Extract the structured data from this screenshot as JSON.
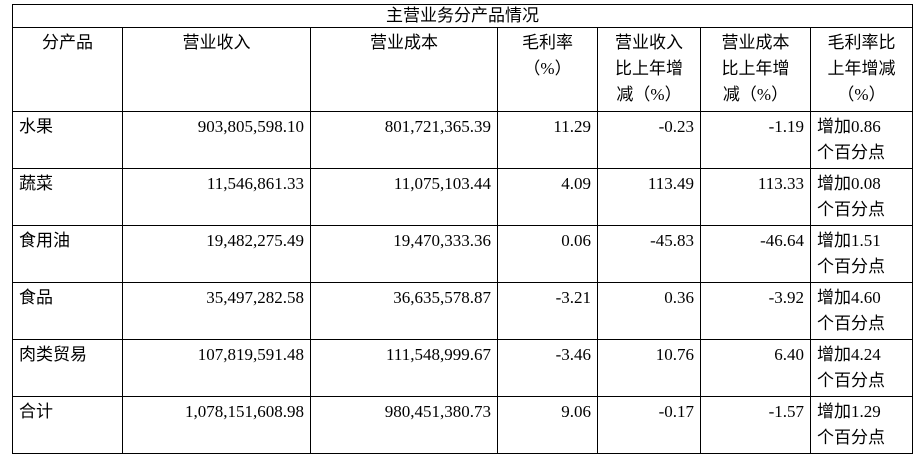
{
  "table": {
    "title": "主营业务分产品情况",
    "header": [
      "分产品",
      "营业收入",
      "营业成本",
      "毛利率\n（%）",
      "营业收入\n比上年增\n减（%）",
      "营业成本\n比上年增\n减（%）",
      "毛利率比\n上年增减\n（%）"
    ],
    "rows": [
      [
        "水果",
        "903,805,598.10",
        "801,721,365.39",
        "11.29",
        "-0.23",
        "-1.19",
        "增加0.86\n个百分点"
      ],
      [
        "蔬菜",
        "11,546,861.33",
        "11,075,103.44",
        "4.09",
        "113.49",
        "113.33",
        "增加0.08\n个百分点"
      ],
      [
        "食用油",
        "19,482,275.49",
        "19,470,333.36",
        "0.06",
        "-45.83",
        "-46.64",
        "增加1.51\n个百分点"
      ],
      [
        "食品",
        "35,497,282.58",
        "36,635,578.87",
        "-3.21",
        "0.36",
        "-3.92",
        "增加4.60\n个百分点"
      ],
      [
        "肉类贸易",
        "107,819,591.48",
        "111,548,999.67",
        "-3.46",
        "10.76",
        "6.40",
        "增加4.24\n个百分点"
      ],
      [
        "合计",
        "1,078,151,608.98",
        "980,451,380.73",
        "9.06",
        "-0.17",
        "-1.57",
        "增加1.29\n个百分点"
      ]
    ]
  }
}
